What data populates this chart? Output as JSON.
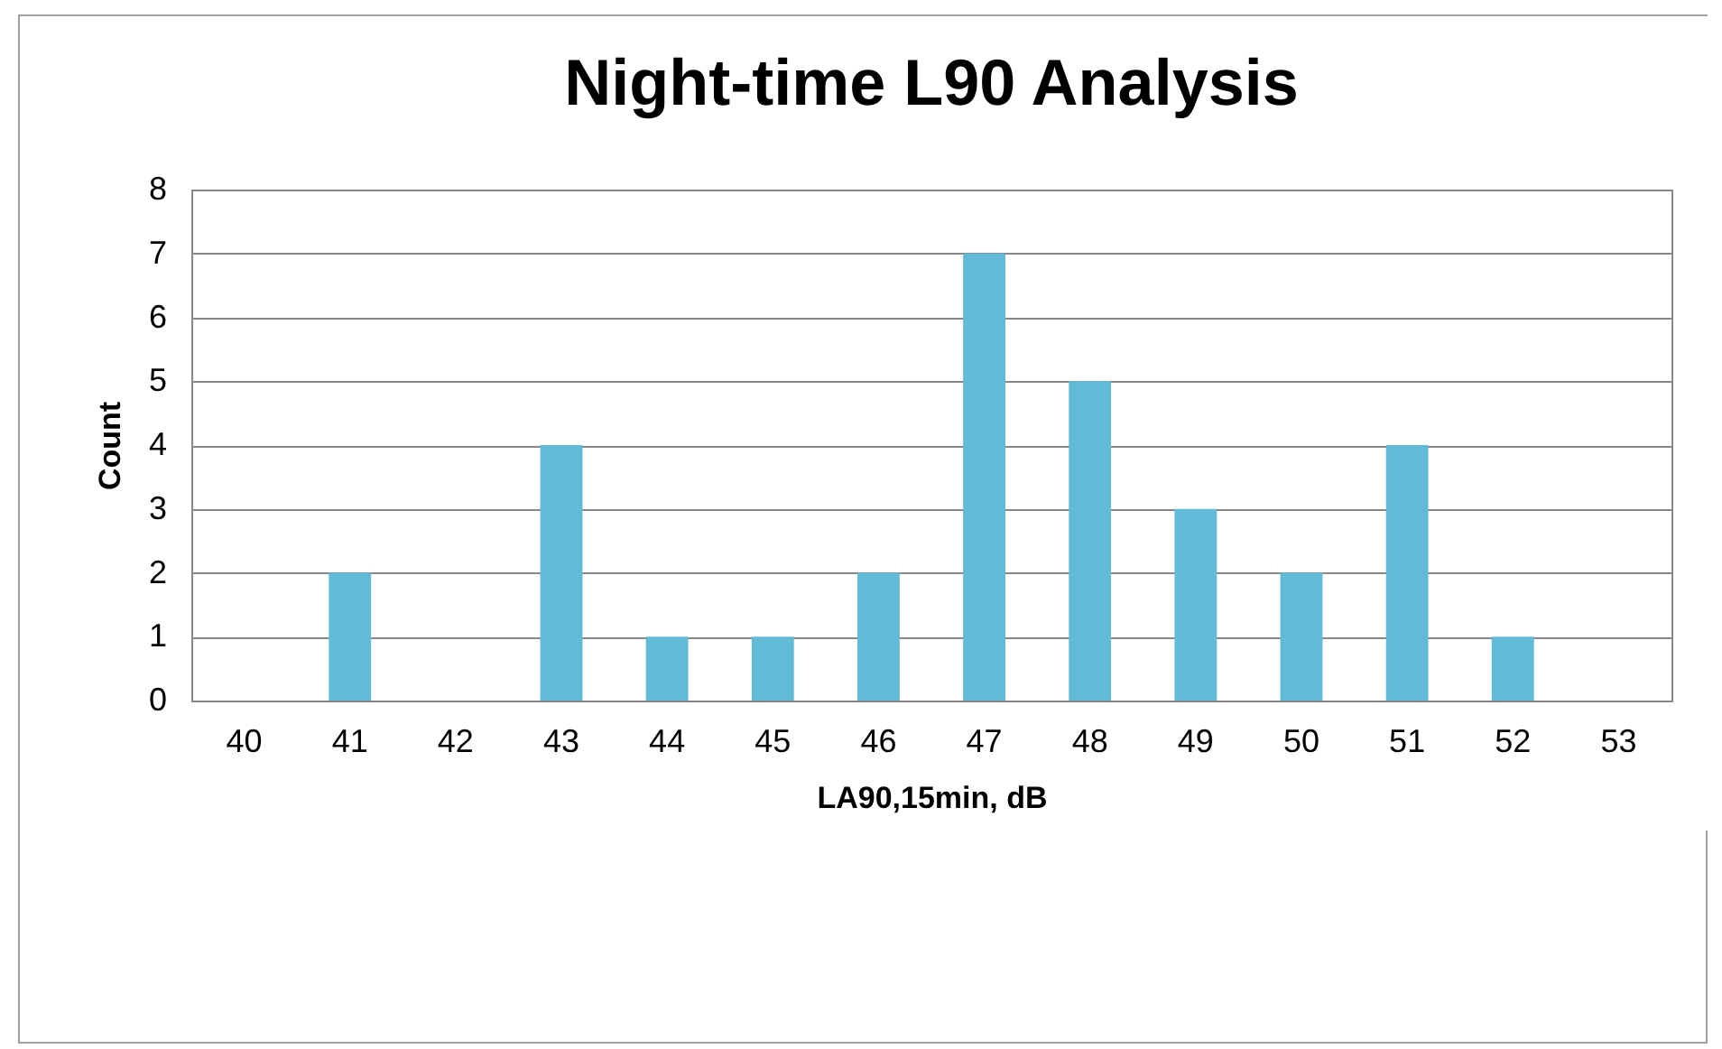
{
  "chart_data": {
    "type": "bar",
    "title": "Night-time L90 Analysis",
    "xlabel": "LA90,15min, dB",
    "ylabel": "Count",
    "categories": [
      "40",
      "41",
      "42",
      "43",
      "44",
      "45",
      "46",
      "47",
      "48",
      "49",
      "50",
      "51",
      "52",
      "53"
    ],
    "values": [
      0,
      2,
      0,
      4,
      1,
      1,
      2,
      7,
      5,
      3,
      2,
      4,
      1,
      0
    ],
    "color": "#62bbd6",
    "ylim": [
      0,
      8
    ],
    "yticks": [
      0,
      1,
      2,
      3,
      4,
      5,
      6,
      7,
      8
    ],
    "grid": "y"
  }
}
